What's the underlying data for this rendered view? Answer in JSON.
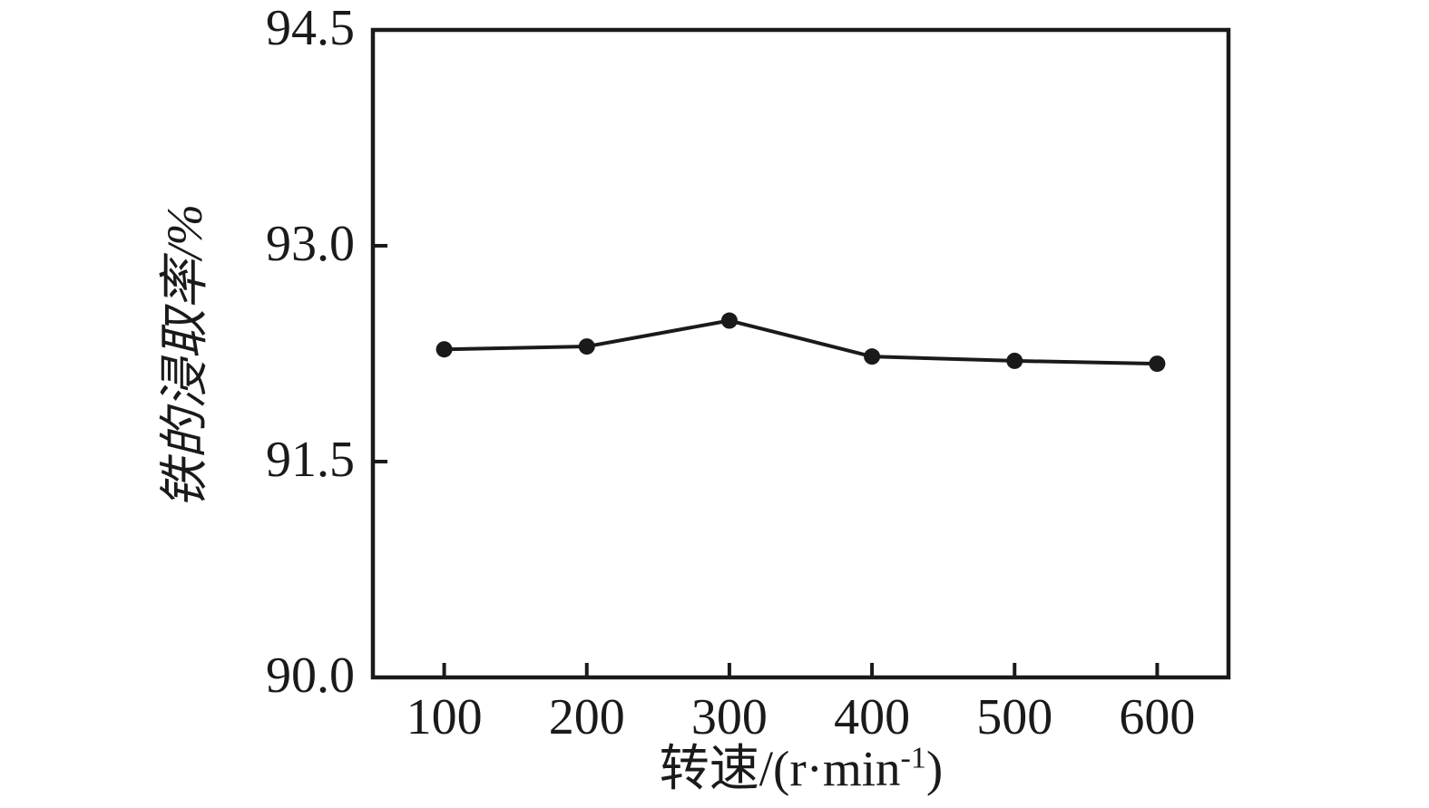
{
  "chart_data": {
    "type": "line",
    "title": "",
    "xlabel": "转速/(r·min⁻¹)",
    "xlabel_parts": {
      "prefix": "转速/(r·min",
      "superscript": "-1",
      "suffix": ")"
    },
    "ylabel": "铁的浸取率/%",
    "x": [
      100,
      200,
      300,
      400,
      500,
      600
    ],
    "series": [
      {
        "name": "铁的浸取率",
        "values": [
          92.28,
          92.3,
          92.48,
          92.23,
          92.2,
          92.18
        ]
      }
    ],
    "xlim": [
      50,
      650
    ],
    "ylim": [
      90.0,
      94.5
    ],
    "xticks": [
      100,
      200,
      300,
      400,
      500,
      600
    ],
    "xtick_labels": [
      "100",
      "200",
      "300",
      "400",
      "500",
      "600"
    ],
    "yticks": [
      90.0,
      91.5,
      93.0,
      94.5
    ],
    "ytick_labels": [
      "90.0",
      "91.5",
      "93.0",
      "94.5"
    ],
    "grid": false,
    "legend_position": "none",
    "line_color": "#1a1a1a",
    "marker": "circle",
    "marker_color": "#1a1a1a",
    "axis_color": "#1a1a1a",
    "background_color": "#ffffff"
  }
}
